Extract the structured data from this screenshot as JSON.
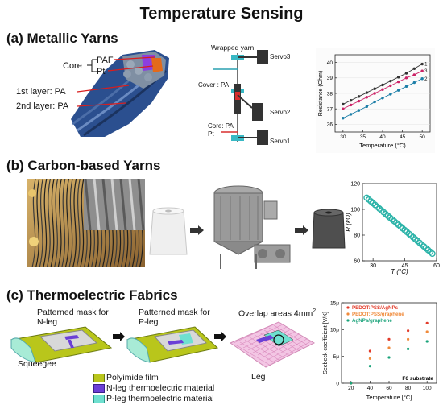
{
  "title": "Temperature Sensing",
  "section_a": {
    "heading": "(a) Metallic Yarns",
    "core_label": "Core",
    "paf_label": "PAF",
    "pt_label": "Pt",
    "layer1_label": "1st layer: PA",
    "layer2_label": "2nd layer: PA",
    "wrapped_yarn_label": "Wrapped yarn",
    "servo3_label": "Servo3",
    "cover_label": "Cover : PA",
    "servo2_label": "Servo2",
    "core_pa_label": "Core: PA",
    "core_pt_label": "Pt",
    "servo1_label": "Servo1"
  },
  "section_b": {
    "heading": "(b) Carbon-based Yarns"
  },
  "section_c": {
    "heading": "(c) Thermoelectric Fabrics",
    "mask_n_line1": "Patterned mask for",
    "mask_n_line2": "N-leg",
    "mask_p_line1": "Patterned mask for",
    "mask_p_line2": "P-leg",
    "overlap_label": "Overlap areas 4mm",
    "overlap_sup": "2",
    "squeegee_label": "Squeegee",
    "leg_label": "Leg",
    "legend_polyimide": "Polyimide film",
    "legend_nleg": "N-leg thermoelectric material",
    "legend_pleg": "P-leg thermoelectric material",
    "colors": {
      "polyimide": "#b9c61b",
      "nleg": "#6b3fd6",
      "pleg": "#6fe0d0"
    }
  },
  "chart_data": [
    {
      "type": "line",
      "xlabel": "Temperature (°C)",
      "ylabel": "Resistance (Ohm)",
      "xlim": [
        28,
        52
      ],
      "ylim": [
        35.5,
        40.5
      ],
      "xticks": [
        30,
        35,
        40,
        45,
        50
      ],
      "yticks": [
        36,
        37,
        38,
        39,
        40
      ],
      "series": [
        {
          "name": "1",
          "color": "#333333",
          "x": [
            30,
            32,
            34,
            36,
            38,
            40,
            42,
            44,
            46,
            48,
            50
          ],
          "y": [
            37.3,
            37.55,
            37.8,
            38.05,
            38.3,
            38.55,
            38.8,
            39.05,
            39.3,
            39.6,
            39.9
          ]
        },
        {
          "name": "3",
          "color": "#cc2266",
          "x": [
            30,
            32,
            34,
            36,
            38,
            40,
            42,
            44,
            46,
            48,
            50
          ],
          "y": [
            37.0,
            37.25,
            37.5,
            37.75,
            38.0,
            38.25,
            38.5,
            38.75,
            39.0,
            39.2,
            39.45
          ]
        },
        {
          "name": "2",
          "color": "#1d7fa8",
          "x": [
            30,
            32,
            34,
            36,
            38,
            40,
            42,
            44,
            46,
            48,
            50
          ],
          "y": [
            36.4,
            36.65,
            36.9,
            37.15,
            37.45,
            37.7,
            37.95,
            38.2,
            38.45,
            38.7,
            38.95
          ]
        }
      ]
    },
    {
      "type": "scatter",
      "xlabel": "T (°C)",
      "ylabel": "R (kΩ)",
      "xlim": [
        25,
        60
      ],
      "ylim": [
        60,
        120
      ],
      "xticks": [
        30,
        45,
        60
      ],
      "yticks": [
        60,
        80,
        100,
        120
      ],
      "color": "#2bb3a8",
      "x": [
        27,
        28,
        29,
        30,
        31,
        32,
        33,
        34,
        35,
        36,
        37,
        38,
        39,
        40,
        41,
        42,
        43,
        44,
        45,
        46,
        47,
        48,
        49,
        50,
        51,
        52,
        53,
        54,
        55,
        56,
        57,
        58
      ],
      "y": [
        109,
        107.6,
        106.2,
        104.8,
        103.4,
        102,
        100.6,
        99.2,
        97.8,
        96.4,
        95,
        93.6,
        92.2,
        90.8,
        89.4,
        88,
        86.6,
        85.2,
        83.8,
        82.4,
        81,
        79.6,
        78.2,
        76.8,
        75.4,
        74,
        72.6,
        71.2,
        69.8,
        68.4,
        67,
        65.6
      ]
    },
    {
      "type": "scatter",
      "xlabel": "Temperature [°C]",
      "ylabel": "Seebeck coefficient [V/K]",
      "annotation": "F6 substrate",
      "xlim": [
        10,
        110
      ],
      "ylim": [
        0,
        15
      ],
      "xticks": [
        20,
        40,
        60,
        80,
        100
      ],
      "yticks": [
        0,
        5,
        10,
        15
      ],
      "ytick_labels": [
        "0",
        "5μ",
        "10μ",
        "15μ"
      ],
      "series": [
        {
          "name": "PEDOT:PSS/AgNPs",
          "color": "#e23b2a",
          "x": [
            20,
            40,
            60,
            80,
            100
          ],
          "y": [
            0,
            6,
            8.2,
            9.8,
            11.2
          ]
        },
        {
          "name": "PEDOT:PSS/graphene",
          "color": "#f08a3a",
          "x": [
            20,
            40,
            60,
            80,
            100
          ],
          "y": [
            0,
            4.6,
            6.6,
            8.2,
            9.6
          ]
        },
        {
          "name": "AgNPs/graphene",
          "color": "#1aa37a",
          "x": [
            20,
            40,
            60,
            80,
            100
          ],
          "y": [
            0,
            3.2,
            4.8,
            6.4,
            7.8
          ]
        }
      ]
    }
  ]
}
